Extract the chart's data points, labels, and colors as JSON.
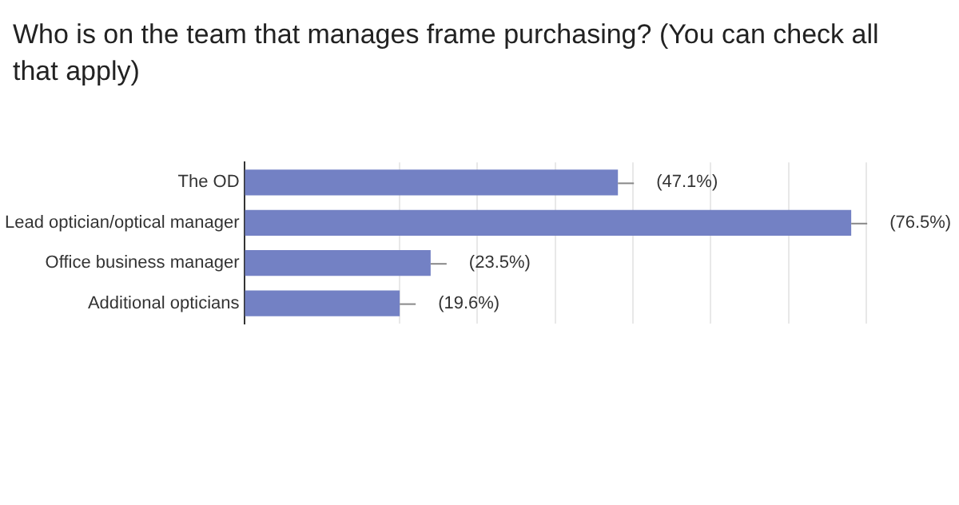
{
  "chart_data": {
    "type": "bar",
    "orientation": "horizontal",
    "title": "Who is on the team that manages frame purchasing? (You can check all that apply)",
    "categories": [
      "The OD",
      "Lead optician/optical manager",
      "Office business manager",
      "Additional opticians"
    ],
    "values": [
      47.1,
      76.5,
      23.5,
      19.6
    ],
    "value_labels": [
      "(47.1%)",
      "(76.5%)",
      "(23.5%)",
      "(19.6%)"
    ],
    "color": "#7381c4",
    "xlim": [
      0,
      78.4
    ],
    "xticks": [
      {
        "value": 0,
        "label": null
      },
      {
        "value": 19.6,
        "label": null
      },
      {
        "value": 29.4,
        "label": null
      },
      {
        "value": 39.2,
        "label": null
      },
      {
        "value": 49,
        "label": null
      },
      {
        "value": 58.8,
        "label": null
      },
      {
        "value": 68.6,
        "label": null
      },
      {
        "value": 78.4,
        "label": null
      }
    ],
    "grid": "x",
    "legend": false,
    "tick_labels": "y"
  }
}
